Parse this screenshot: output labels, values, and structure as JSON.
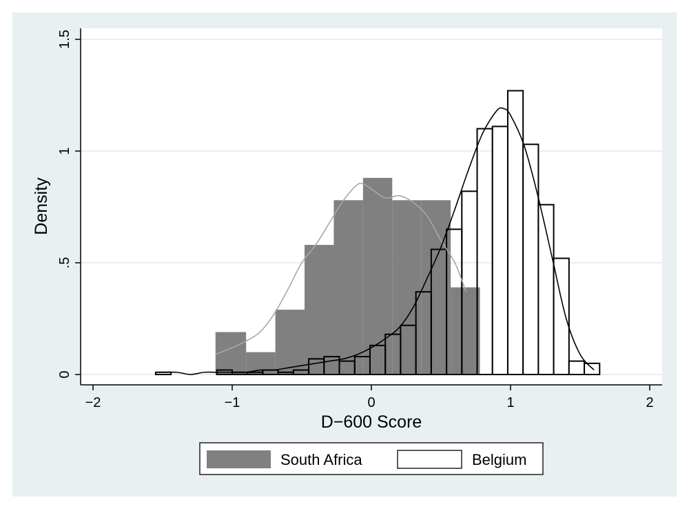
{
  "chart_data": {
    "type": "bar",
    "xlabel": "D−600 Score",
    "ylabel": "Density",
    "xlim": [
      -2.05,
      2.1
    ],
    "ylim": [
      0,
      1.5
    ],
    "x_ticks": [
      {
        "value": -2,
        "label": "−2"
      },
      {
        "value": -1,
        "label": "−1"
      },
      {
        "value": 0,
        "label": "0"
      },
      {
        "value": 1,
        "label": "1"
      },
      {
        "value": 2,
        "label": "2"
      }
    ],
    "y_ticks": [
      {
        "value": 0,
        "label": "0"
      },
      {
        "value": 0.5,
        "label": ".5"
      },
      {
        "value": 1,
        "label": "1"
      },
      {
        "value": 1.5,
        "label": "1.5"
      }
    ],
    "grid": true,
    "legend_position": "bottom",
    "series": [
      {
        "name": "South Africa",
        "kind": "histogram",
        "color": "#808080",
        "bins": [
          {
            "x0": -1.12,
            "x1": -0.9,
            "density": 0.19
          },
          {
            "x0": -0.9,
            "x1": -0.69,
            "density": 0.1
          },
          {
            "x0": -0.69,
            "x1": -0.48,
            "density": 0.29
          },
          {
            "x0": -0.48,
            "x1": -0.27,
            "density": 0.58
          },
          {
            "x0": -0.27,
            "x1": -0.06,
            "density": 0.78
          },
          {
            "x0": -0.06,
            "x1": 0.15,
            "density": 0.88
          },
          {
            "x0": 0.15,
            "x1": 0.36,
            "density": 0.78
          },
          {
            "x0": 0.36,
            "x1": 0.57,
            "density": 0.78
          },
          {
            "x0": 0.57,
            "x1": 0.78,
            "density": 0.39
          }
        ],
        "density_curve": {
          "color": "#a8a8a8",
          "x": [
            -1.12,
            -1.0,
            -0.9,
            -0.8,
            -0.7,
            -0.6,
            -0.5,
            -0.4,
            -0.3,
            -0.2,
            -0.1,
            -0.05,
            0.0,
            0.1,
            0.2,
            0.3,
            0.4,
            0.5,
            0.6,
            0.68
          ],
          "y": [
            0.09,
            0.12,
            0.15,
            0.19,
            0.27,
            0.38,
            0.5,
            0.58,
            0.68,
            0.78,
            0.85,
            0.85,
            0.83,
            0.79,
            0.8,
            0.77,
            0.71,
            0.6,
            0.5,
            0.37
          ]
        }
      },
      {
        "name": "Belgium",
        "kind": "histogram",
        "color": "#ffffff",
        "stroke": "#000000",
        "bins": [
          {
            "x0": -1.55,
            "x1": -1.44,
            "density": 0.01
          },
          {
            "x0": -1.11,
            "x1": -1.0,
            "density": 0.02
          },
          {
            "x0": -1.0,
            "x1": -0.89,
            "density": 0.01
          },
          {
            "x0": -0.89,
            "x1": -0.78,
            "density": 0.01
          },
          {
            "x0": -0.78,
            "x1": -0.67,
            "density": 0.02
          },
          {
            "x0": -0.67,
            "x1": -0.56,
            "density": 0.01
          },
          {
            "x0": -0.56,
            "x1": -0.45,
            "density": 0.02
          },
          {
            "x0": -0.45,
            "x1": -0.34,
            "density": 0.07
          },
          {
            "x0": -0.34,
            "x1": -0.23,
            "density": 0.08
          },
          {
            "x0": -0.23,
            "x1": -0.12,
            "density": 0.06
          },
          {
            "x0": -0.12,
            "x1": -0.01,
            "density": 0.08
          },
          {
            "x0": -0.01,
            "x1": 0.1,
            "density": 0.13
          },
          {
            "x0": 0.1,
            "x1": 0.21,
            "density": 0.18
          },
          {
            "x0": 0.21,
            "x1": 0.32,
            "density": 0.22
          },
          {
            "x0": 0.32,
            "x1": 0.43,
            "density": 0.37
          },
          {
            "x0": 0.43,
            "x1": 0.54,
            "density": 0.56
          },
          {
            "x0": 0.54,
            "x1": 0.65,
            "density": 0.65
          },
          {
            "x0": 0.65,
            "x1": 0.76,
            "density": 0.82
          },
          {
            "x0": 0.76,
            "x1": 0.87,
            "density": 1.1
          },
          {
            "x0": 0.87,
            "x1": 0.98,
            "density": 1.11
          },
          {
            "x0": 0.98,
            "x1": 1.09,
            "density": 1.27
          },
          {
            "x0": 1.09,
            "x1": 1.2,
            "density": 1.03
          },
          {
            "x0": 1.2,
            "x1": 1.31,
            "density": 0.76
          },
          {
            "x0": 1.31,
            "x1": 1.42,
            "density": 0.52
          },
          {
            "x0": 1.42,
            "x1": 1.53,
            "density": 0.06
          },
          {
            "x0": 1.53,
            "x1": 1.64,
            "density": 0.05
          }
        ],
        "density_curve": {
          "color": "#000000",
          "x": [
            -1.55,
            -1.4,
            -1.3,
            -1.2,
            -1.1,
            -1.0,
            -0.9,
            -0.8,
            -0.7,
            -0.6,
            -0.5,
            -0.4,
            -0.3,
            -0.2,
            -0.1,
            0.0,
            0.1,
            0.2,
            0.3,
            0.4,
            0.5,
            0.6,
            0.7,
            0.8,
            0.9,
            0.95,
            1.0,
            1.1,
            1.2,
            1.3,
            1.4,
            1.5,
            1.6
          ],
          "y": [
            0.01,
            0.01,
            0.0,
            0.01,
            0.01,
            0.01,
            0.01,
            0.02,
            0.02,
            0.03,
            0.04,
            0.05,
            0.06,
            0.07,
            0.09,
            0.12,
            0.16,
            0.21,
            0.3,
            0.43,
            0.57,
            0.74,
            0.92,
            1.08,
            1.18,
            1.19,
            1.16,
            1.02,
            0.79,
            0.52,
            0.25,
            0.09,
            0.02
          ]
        }
      }
    ],
    "legend": [
      {
        "label": "South Africa",
        "fill": "#808080"
      },
      {
        "label": "Belgium",
        "fill": "#ffffff"
      }
    ]
  }
}
